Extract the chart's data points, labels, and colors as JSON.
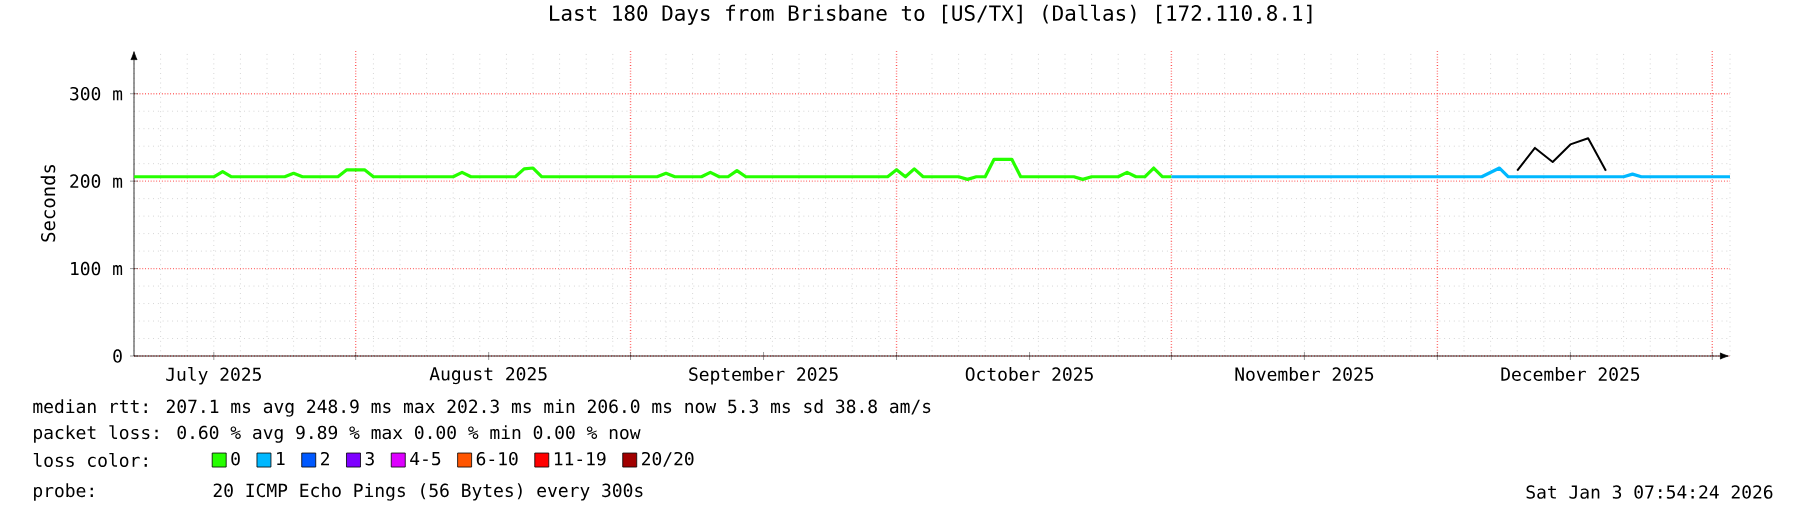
{
  "chart_data": {
    "type": "line",
    "title": "Last 180 Days from Brisbane to [US/TX] (Dallas) [172.110.8.1]",
    "ylabel": "Seconds",
    "xlim": [
      "2025-07-07",
      "2026-01-03"
    ],
    "ylim": [
      0,
      350
    ],
    "xticks": [
      {
        "value": "2025-08-01",
        "label": null
      },
      {
        "value": "2025-09-01",
        "label": null
      },
      {
        "value": "2025-10-01",
        "label": null
      },
      {
        "value": "2025-11-01",
        "label": null
      },
      {
        "value": "2025-12-01",
        "label": null
      },
      {
        "value": "2026-01-01",
        "label": null
      },
      {
        "value": "2025-07-16",
        "label": "July 2025"
      },
      {
        "value": "2025-08-16",
        "label": "August 2025"
      },
      {
        "value": "2025-09-16",
        "label": "September 2025"
      },
      {
        "value": "2025-10-16",
        "label": "October 2025"
      },
      {
        "value": "2025-11-16",
        "label": "November 2025"
      },
      {
        "value": "2025-12-16",
        "label": "December 2025"
      }
    ],
    "yticks": [
      0,
      {
        "value": 100,
        "label": "100 m"
      },
      {
        "value": 200,
        "label": "200 m"
      },
      {
        "value": 300,
        "label": "300 m"
      }
    ],
    "grid": true,
    "legend": "bottom",
    "series": [
      {
        "name": "0",
        "color": "#26ff00",
        "x": [
          "2025-07-07",
          "2025-07-16",
          "2025-07-17",
          "2025-07-18",
          "2025-07-24",
          "2025-07-25",
          "2025-07-26",
          "2025-07-30",
          "2025-07-31",
          "2025-08-02",
          "2025-08-03",
          "2025-08-12",
          "2025-08-13",
          "2025-08-14",
          "2025-08-19",
          "2025-08-20",
          "2025-08-21",
          "2025-08-22",
          "2025-09-04",
          "2025-09-05",
          "2025-09-06",
          "2025-09-09",
          "2025-09-10",
          "2025-09-11",
          "2025-09-12",
          "2025-09-13",
          "2025-09-14",
          "2025-09-30",
          "2025-10-01",
          "2025-10-02",
          "2025-10-03",
          "2025-10-04",
          "2025-10-08",
          "2025-10-09",
          "2025-10-10",
          "2025-10-11",
          "2025-10-12",
          "2025-10-14",
          "2025-10-15",
          "2025-10-21",
          "2025-10-22",
          "2025-10-23",
          "2025-10-26",
          "2025-10-27",
          "2025-10-28",
          "2025-10-29",
          "2025-10-30",
          "2025-10-31",
          "2025-11-01"
        ],
        "values": [
          205,
          205,
          211,
          205,
          205,
          209,
          205,
          205,
          213,
          213,
          205,
          205,
          210,
          205,
          205,
          214,
          215,
          205,
          205,
          209,
          205,
          205,
          210,
          205,
          205,
          212,
          205,
          205,
          213,
          205,
          214,
          205,
          205,
          202,
          205,
          205,
          225,
          225,
          205,
          205,
          202,
          205,
          205,
          210,
          205,
          205,
          215,
          205,
          205
        ]
      },
      {
        "name": "1",
        "color": "#00b8ff",
        "x": [
          "2025-11-01",
          "2025-12-06",
          "2025-12-08",
          "2025-12-09",
          "2025-12-22",
          "2025-12-23",
          "2025-12-24",
          "2026-01-03"
        ],
        "values": [
          205,
          205,
          215,
          205,
          205,
          208,
          205,
          205
        ]
      },
      {
        "name": "2",
        "color": "#0059ff"
      },
      {
        "name": "3",
        "color": "#7e00ff"
      },
      {
        "name": "4-5",
        "color": "#dd00ff"
      },
      {
        "name": "6-10",
        "color": "#ff5500"
      },
      {
        "name": "11-19",
        "color": "#ff0000"
      },
      {
        "name": "20/20",
        "color": "#a10000"
      },
      {
        "color": "#000000",
        "x": [
          "2025-12-10",
          "2025-12-12",
          "2025-12-14",
          "2025-12-16",
          "2025-12-18",
          "2025-12-20"
        ],
        "values": [
          212,
          238,
          222,
          242,
          249,
          212
        ]
      }
    ],
    "annotations": [
      "median rtt: 207.1 ms avg 248.9 ms max 202.3 ms min 206.0 ms now 5.3 ms sd 38.8 am/s",
      "packet loss: 0.60 % avg 9.89 % max 0.00 % min 0.00 % now",
      "loss color:",
      "probe:",
      "20 ICMP Echo Pings (56 Bytes) every 300s",
      "Sat Jan 3 07:54:24 2026"
    ]
  }
}
